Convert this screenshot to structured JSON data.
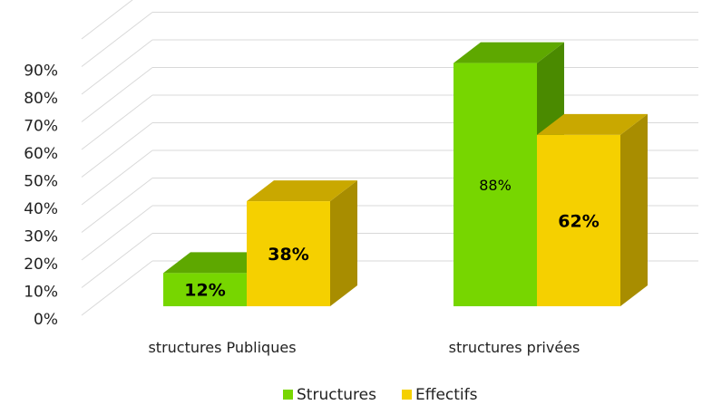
{
  "chart_data": {
    "type": "bar",
    "categories": [
      "structures Publiques",
      "structures privées"
    ],
    "series": [
      {
        "name": "Structures",
        "values": [
          12,
          88
        ],
        "data_labels": [
          "12%",
          "88%"
        ],
        "color": "#77d600",
        "side_color": "#4a8a00",
        "top_color": "#5ea800"
      },
      {
        "name": "Effectifs",
        "values": [
          38,
          62
        ],
        "data_labels": [
          "38%",
          "62%"
        ],
        "color": "#f5d000",
        "side_color": "#a88d00",
        "top_color": "#c9a800"
      }
    ],
    "yticks": [
      "0%",
      "10%",
      "20%",
      "30%",
      "40%",
      "50%",
      "60%",
      "70%",
      "80%",
      "90%"
    ],
    "ylim": [
      0,
      100
    ],
    "grid": true,
    "legend_position": "bottom",
    "gridline_color": "#d9d9d9"
  }
}
